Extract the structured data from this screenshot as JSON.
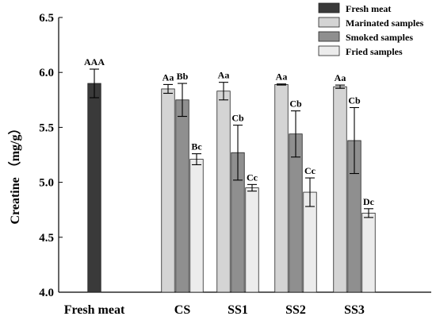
{
  "chart_data": {
    "type": "bar",
    "title": "",
    "ylabel": "Creatine （mg/g）",
    "xlabel": "",
    "ylim": [
      4.0,
      6.5
    ],
    "yticks": [
      "4.0",
      "4.5",
      "5.0",
      "5.5",
      "6.0",
      "6.5"
    ],
    "ytick_values": [
      4.0,
      4.5,
      5.0,
      5.5,
      6.0,
      6.5
    ],
    "grid": false,
    "legend_position": "top-right",
    "categories": [
      "Fresh meat",
      "CS",
      "SS1",
      "SS2",
      "SS3"
    ],
    "series": [
      {
        "name": "Fresh meat",
        "color": "#3a3a3a",
        "values": [
          5.9,
          null,
          null,
          null,
          null
        ],
        "errors": [
          0.13,
          null,
          null,
          null,
          null
        ],
        "labels": [
          "AAA",
          "",
          "",
          "",
          ""
        ]
      },
      {
        "name": "Marinated samples",
        "color": "#d4d4d4",
        "values": [
          null,
          5.85,
          5.83,
          5.89,
          5.87
        ],
        "errors": [
          null,
          0.04,
          0.08,
          0.005,
          0.015
        ],
        "labels": [
          "",
          "Aa",
          "Aa",
          "Aa",
          "Aa"
        ]
      },
      {
        "name": "Smoked samples",
        "color": "#8f8f8f",
        "values": [
          null,
          5.75,
          5.27,
          5.44,
          5.38
        ],
        "errors": [
          null,
          0.15,
          0.25,
          0.21,
          0.3
        ],
        "labels": [
          "",
          "Bb",
          "Cb",
          "Cb",
          "Cb"
        ]
      },
      {
        "name": "Fried samples",
        "color": "#ececec",
        "values": [
          null,
          5.21,
          4.95,
          4.91,
          4.72
        ],
        "errors": [
          null,
          0.05,
          0.03,
          0.13,
          0.04
        ],
        "labels": [
          "",
          "Bc",
          "Cc",
          "Cc",
          "Dc"
        ]
      }
    ]
  }
}
